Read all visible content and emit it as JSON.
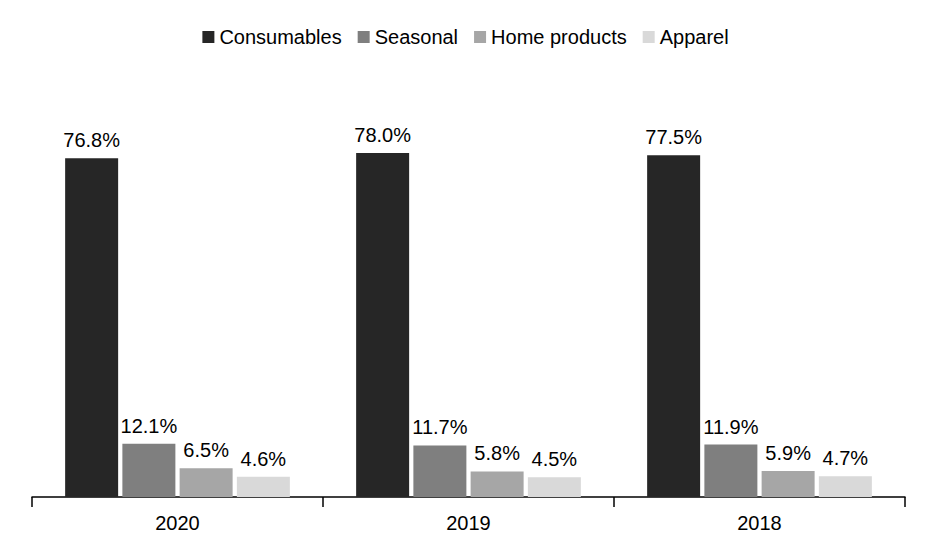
{
  "chart_data": {
    "type": "bar",
    "categories": [
      "2020",
      "2019",
      "2018"
    ],
    "series": [
      {
        "name": "Consumables",
        "color": "#262626",
        "values": [
          76.8,
          78.0,
          77.5
        ],
        "value_labels": [
          "76.8%",
          "78.0%",
          "77.5%"
        ]
      },
      {
        "name": "Seasonal",
        "color": "#7f7f7f",
        "values": [
          12.1,
          11.7,
          11.9
        ],
        "value_labels": [
          "12.1%",
          "11.7%",
          "11.9%"
        ]
      },
      {
        "name": "Home products",
        "color": "#a6a6a6",
        "values": [
          6.5,
          5.8,
          5.9
        ],
        "value_labels": [
          "6.5%",
          "5.8%",
          "5.9%"
        ]
      },
      {
        "name": "Apparel",
        "color": "#d9d9d9",
        "values": [
          4.6,
          4.5,
          4.7
        ],
        "value_labels": [
          "4.6%",
          "4.5%",
          "4.7%"
        ]
      }
    ],
    "ylim": [
      0,
      90
    ],
    "grid": false,
    "legend": "top",
    "data_labels": true,
    "tick_labels": "x"
  }
}
